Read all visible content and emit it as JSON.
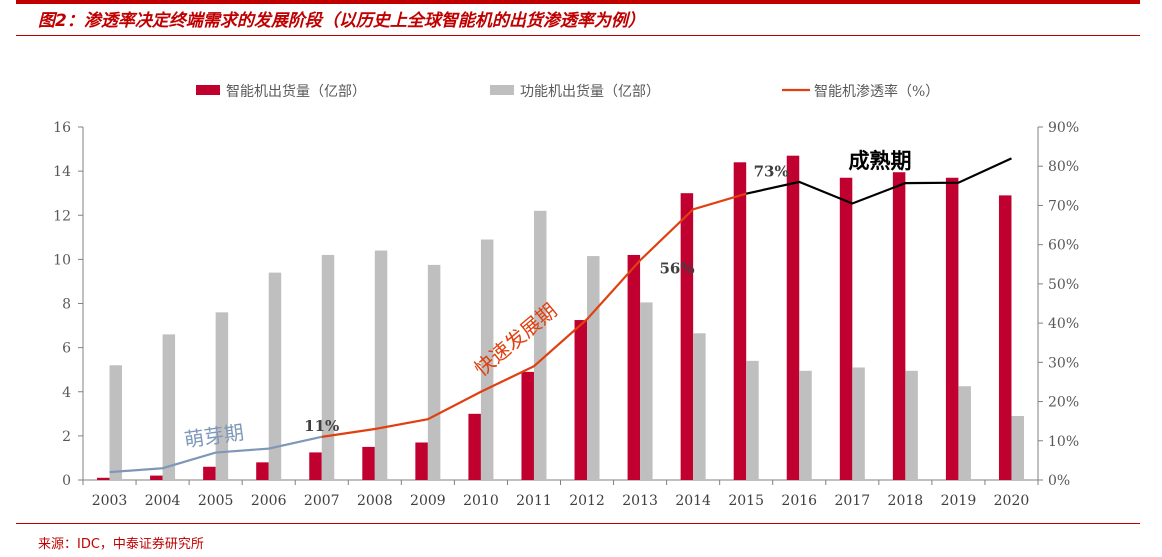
{
  "title": "图2：渗透率决定终端需求的发展阶段（以历史上全球智能机的出货渗透率为例）",
  "source": "来源：IDC，中泰证券研究所",
  "chart_data": {
    "type": "bar+line",
    "categories": [
      "2003",
      "2004",
      "2005",
      "2006",
      "2007",
      "2008",
      "2009",
      "2010",
      "2011",
      "2012",
      "2013",
      "2014",
      "2015",
      "2016",
      "2017",
      "2018",
      "2019",
      "2020"
    ],
    "series": [
      {
        "name": "智能机出货量（亿部）",
        "type": "bar",
        "axis": "left",
        "color": "#c0002f",
        "values": [
          0.1,
          0.2,
          0.6,
          0.8,
          1.25,
          1.5,
          1.7,
          3.0,
          4.9,
          7.25,
          10.2,
          13.0,
          14.4,
          14.7,
          13.7,
          13.95,
          13.7,
          12.9
        ]
      },
      {
        "name": "功能机出货量（亿部）",
        "type": "bar",
        "axis": "left",
        "color": "#bfbfbf",
        "values": [
          5.2,
          6.6,
          7.6,
          9.4,
          10.2,
          10.4,
          9.75,
          10.9,
          12.2,
          10.15,
          8.05,
          6.65,
          5.4,
          4.95,
          5.1,
          4.95,
          4.25,
          2.9
        ]
      },
      {
        "name": "智能机渗透率（%）",
        "type": "line",
        "axis": "right",
        "color": "#e04010",
        "values": [
          2,
          3,
          7,
          8,
          11,
          13,
          15.5,
          22.5,
          29,
          41,
          56,
          69,
          73,
          76,
          70.5,
          75.7,
          75.8,
          82
        ]
      }
    ],
    "phase_colors": {
      "萌芽期": "#7f98b8",
      "快速发展期": "#e04010",
      "成熟期": "#000000"
    },
    "left_axis": {
      "ylim": [
        0,
        16
      ],
      "ticks": [
        "0",
        "2",
        "4",
        "6",
        "8",
        "10",
        "12",
        "14",
        "16"
      ]
    },
    "right_axis": {
      "ylim": [
        0,
        90
      ],
      "ticks": [
        "0%",
        "10%",
        "20%",
        "30%",
        "40%",
        "50%",
        "60%",
        "70%",
        "80%",
        "90%"
      ]
    },
    "annotations": {
      "p2007": "11%",
      "p2013": "56%",
      "p2015": "73%",
      "phase1": "萌芽期",
      "phase2": "快速发展期",
      "phase3": "成熟期"
    },
    "legend": "top",
    "grid": false
  }
}
